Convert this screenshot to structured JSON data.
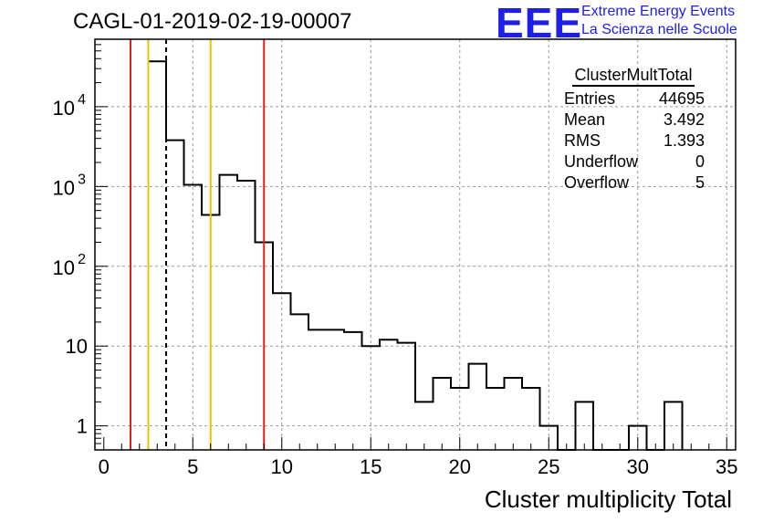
{
  "header": {
    "title": "CAGL-01-2019-02-19-00007",
    "logo_text": "EEE",
    "logo_line1": "Extreme Energy Events",
    "logo_line2": "La Scienza nelle Scuole"
  },
  "stats_box": {
    "title": "ClusterMultTotal",
    "rows": [
      {
        "label": "Entries",
        "value": "44695"
      },
      {
        "label": "Mean",
        "value": "3.492"
      },
      {
        "label": "RMS",
        "value": "1.393"
      },
      {
        "label": "Underflow",
        "value": "0"
      },
      {
        "label": "Overflow",
        "value": "5"
      }
    ]
  },
  "chart_data": {
    "type": "bar",
    "histogram": true,
    "title": "CAGL-01-2019-02-19-00007",
    "xlabel": "Cluster multiplicity Total",
    "ylabel": "",
    "xlim": [
      -0.5,
      35.5
    ],
    "ylim": [
      0.5,
      70000
    ],
    "ylog": true,
    "grid": true,
    "bin_width": 1,
    "bin_centers": [
      3,
      4,
      5,
      6,
      7,
      8,
      9,
      10,
      11,
      12,
      13,
      14,
      15,
      16,
      17,
      18,
      19,
      20,
      21,
      22,
      23,
      24,
      25,
      26,
      27,
      28,
      29,
      30,
      31,
      32
    ],
    "values": [
      37000,
      3800,
      1050,
      440,
      1400,
      1180,
      200,
      46,
      25,
      16,
      16,
      15,
      10,
      12,
      11,
      2,
      4,
      3,
      6,
      3,
      4,
      3,
      1,
      0,
      2,
      0,
      0,
      1,
      0,
      2
    ],
    "x_ticks": [
      0,
      5,
      10,
      15,
      20,
      25,
      30,
      35
    ],
    "x_tick_labels": [
      "0",
      "5",
      "10",
      "15",
      "20",
      "25",
      "30",
      "35"
    ],
    "y_ticks": [
      1,
      10,
      100,
      1000,
      10000
    ],
    "y_tick_labels": [
      {
        "base": "1",
        "exp": ""
      },
      {
        "base": "10",
        "exp": ""
      },
      {
        "base": "10",
        "exp": "2"
      },
      {
        "base": "10",
        "exp": "3"
      },
      {
        "base": "10",
        "exp": "4"
      }
    ],
    "vertical_lines": [
      {
        "x": 1.5,
        "color": "#e0201e",
        "style": "solid"
      },
      {
        "x": 2.5,
        "color": "#f0c000",
        "style": "solid"
      },
      {
        "x": 3.5,
        "color": "#000000",
        "style": "dashed"
      },
      {
        "x": 6.0,
        "color": "#f0c000",
        "style": "solid"
      },
      {
        "x": 9.0,
        "color": "#e0201e",
        "style": "solid"
      }
    ],
    "legend": "top-right"
  }
}
